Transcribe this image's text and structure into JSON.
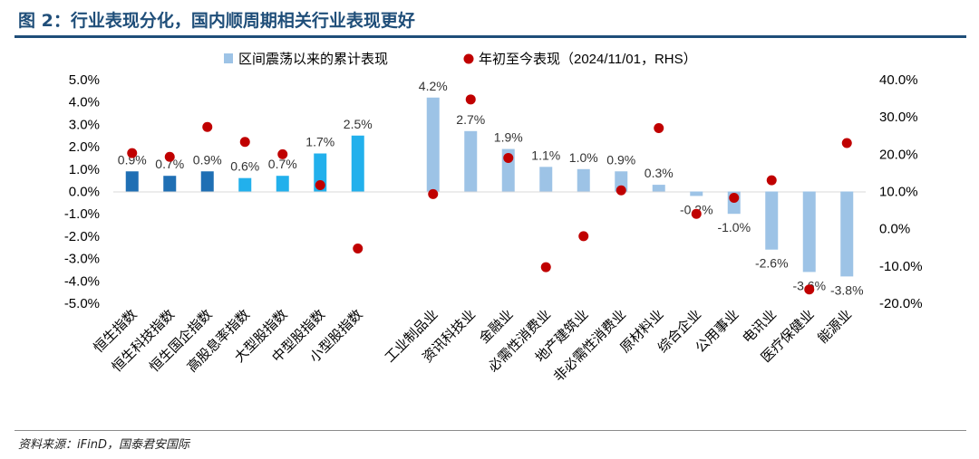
{
  "figure": {
    "title": "图 2：行业表现分化，国内顺周期相关行业表现更好",
    "source": "资料来源：iFinD，国泰君安国际"
  },
  "chart_data": {
    "type": "bar",
    "title": "图 2：行业表现分化，国内顺周期相关行业表现更好",
    "categories": [
      "恒生指数",
      "恒生科技指数",
      "恒生国企指数",
      "高股息率指数",
      "大型股指数",
      "中型股指数",
      "小型股指数",
      "",
      "工业制品业",
      "资讯科技业",
      "金融业",
      "必需性消费业",
      "地产建筑业",
      "非必需性消费业",
      "原材料业",
      "综合企业",
      "公用事业",
      "电讯业",
      "医疗保健业",
      "能源业"
    ],
    "series": [
      {
        "name": "区间震荡以来的累计表现",
        "axis": "left",
        "kind": "bar",
        "values": [
          0.9,
          0.7,
          0.9,
          0.6,
          0.7,
          1.7,
          2.5,
          null,
          4.2,
          2.7,
          1.9,
          1.1,
          1.0,
          0.9,
          0.3,
          -0.2,
          -1.0,
          -2.6,
          -3.6,
          -3.8
        ],
        "labels": [
          "0.9%",
          "0.7%",
          "0.9%",
          "0.6%",
          "0.7%",
          "1.7%",
          "2.5%",
          "",
          "4.2%",
          "2.7%",
          "1.9%",
          "1.1%",
          "1.0%",
          "0.9%",
          "0.3%",
          "-0.2%",
          "-1.0%",
          "-2.6%",
          "-3.6%",
          "-3.8%"
        ],
        "colors": [
          "#1f6fb4",
          "#1f6fb4",
          "#1f6fb4",
          "#22b0ec",
          "#22b0ec",
          "#22b0ec",
          "#22b0ec",
          "",
          "#9dc3e6",
          "#9dc3e6",
          "#9dc3e6",
          "#9dc3e6",
          "#9dc3e6",
          "#9dc3e6",
          "#9dc3e6",
          "#9dc3e6",
          "#9dc3e6",
          "#9dc3e6",
          "#9dc3e6",
          "#9dc3e6"
        ],
        "legend_color": "#9dc3e6"
      },
      {
        "name": "年初至今表现（2024/11/01，RHS）",
        "axis": "right",
        "kind": "scatter",
        "color": "#c00000",
        "values": [
          20.3,
          19.3,
          27.3,
          23.3,
          20.0,
          11.7,
          -5.3,
          null,
          9.3,
          34.7,
          19.0,
          -10.3,
          -2.0,
          10.3,
          27.0,
          4.0,
          8.3,
          13.0,
          -16.3,
          23.0
        ]
      }
    ],
    "y_left": {
      "min": -5.0,
      "max": 5.0,
      "step": 1.0,
      "ticks": [
        "-5.0%",
        "-4.0%",
        "-3.0%",
        "-2.0%",
        "-1.0%",
        "0.0%",
        "1.0%",
        "2.0%",
        "3.0%",
        "4.0%",
        "5.0%"
      ]
    },
    "y_right": {
      "min": -20.0,
      "max": 40.0,
      "step": 10.0,
      "ticks": [
        "-20.0%",
        "-10.0%",
        "0.0%",
        "10.0%",
        "20.0%",
        "30.0%",
        "40.0%"
      ]
    },
    "legend": "top-center"
  }
}
